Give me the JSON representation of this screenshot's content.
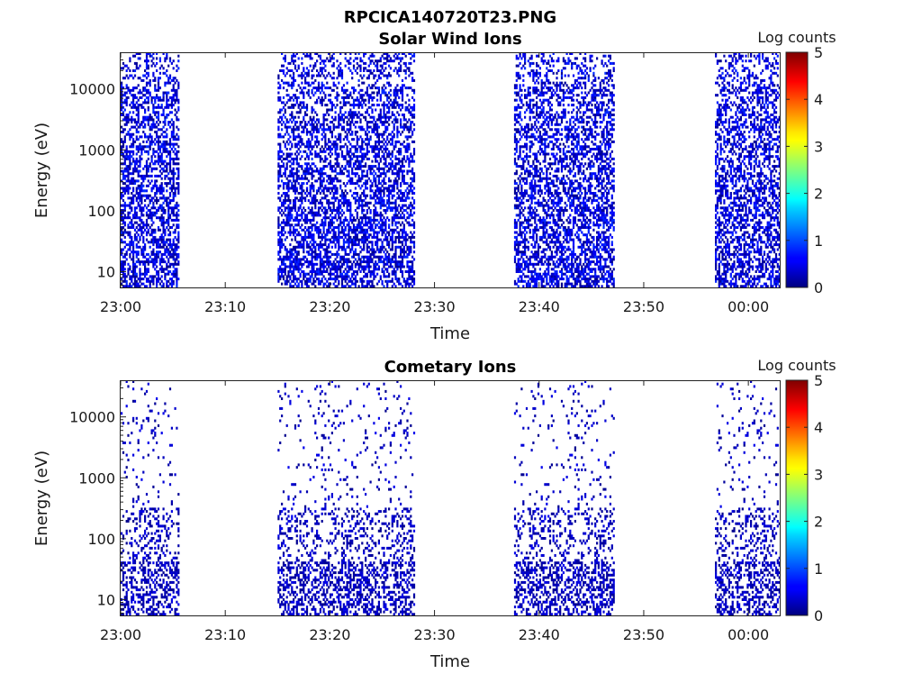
{
  "figure_title": "RPCICA140720T23.PNG",
  "chart_data": [
    {
      "type": "heatmap",
      "title": "Solar Wind Ions",
      "xlabel": "Time",
      "ylabel": "Energy (eV)",
      "x_tick_labels": [
        "23:00",
        "23:10",
        "23:20",
        "23:30",
        "23:40",
        "23:50",
        "00:00"
      ],
      "x_range_minutes": [
        0,
        63
      ],
      "y_tick_labels": [
        "10",
        "100",
        "1000",
        "10000"
      ],
      "y_ticks": [
        10,
        100,
        1000,
        10000
      ],
      "y_range": [
        5.5,
        40000
      ],
      "y_scale": "log",
      "colorbar": {
        "label": "Log counts",
        "range": [
          0,
          5
        ],
        "tick_labels": [
          "0",
          "1",
          "2",
          "3",
          "4",
          "5"
        ],
        "colormap": "jet"
      },
      "data_intervals_minutes": [
        [
          0,
          5.6
        ],
        [
          15,
          28
        ],
        [
          37.6,
          47.2
        ],
        [
          56.8,
          63
        ]
      ],
      "density": "high",
      "peak_log_counts": 0.8
    },
    {
      "type": "heatmap",
      "title": "Cometary Ions",
      "xlabel": "Time",
      "ylabel": "Energy (eV)",
      "x_tick_labels": [
        "23:00",
        "23:10",
        "23:20",
        "23:30",
        "23:40",
        "23:50",
        "00:00"
      ],
      "x_range_minutes": [
        0,
        63
      ],
      "y_tick_labels": [
        "10",
        "100",
        "1000",
        "10000"
      ],
      "y_ticks": [
        10,
        100,
        1000,
        10000
      ],
      "y_range": [
        5.5,
        40000
      ],
      "y_scale": "log",
      "colorbar": {
        "label": "Log counts",
        "range": [
          0,
          5
        ],
        "tick_labels": [
          "0",
          "1",
          "2",
          "3",
          "4",
          "5"
        ],
        "colormap": "jet"
      },
      "data_intervals_minutes": [
        [
          0,
          5.6
        ],
        [
          15,
          28
        ],
        [
          37.6,
          47.2
        ],
        [
          56.8,
          63
        ]
      ],
      "density": "sparse",
      "peak_log_counts": 0.5
    }
  ]
}
